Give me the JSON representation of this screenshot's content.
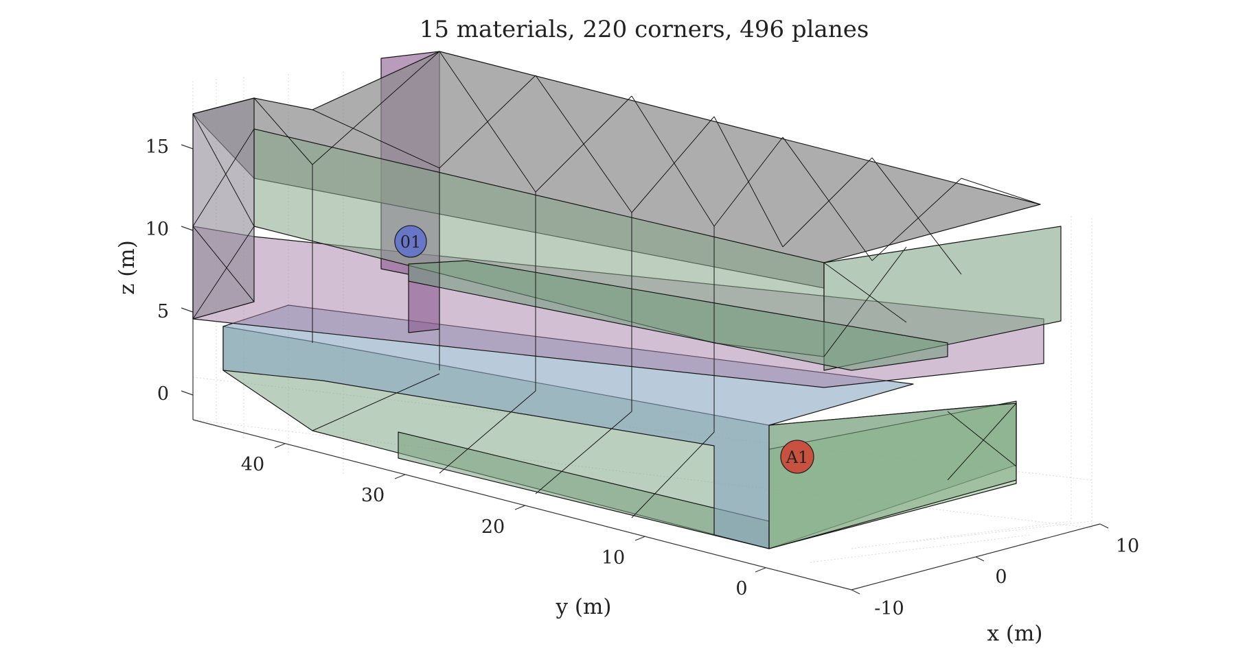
{
  "title": "15 materials, 220 corners, 496 planes",
  "axes": {
    "x": {
      "label": "x (m)",
      "ticks": [
        "-10",
        "0",
        "10"
      ]
    },
    "y": {
      "label": "y (m)",
      "ticks": [
        "0",
        "10",
        "20",
        "30",
        "40"
      ]
    },
    "z": {
      "label": "z (m)",
      "ticks": [
        "0",
        "5",
        "10",
        "15"
      ]
    }
  },
  "markers": [
    {
      "id": "01",
      "color": "#6776c6"
    },
    {
      "id": "A1",
      "color": "#c8513f"
    }
  ],
  "colors": {
    "pink": "#a680a8",
    "green": "#82a886",
    "blue": "#8aa6c2",
    "gray": "#8c8a8c"
  }
}
